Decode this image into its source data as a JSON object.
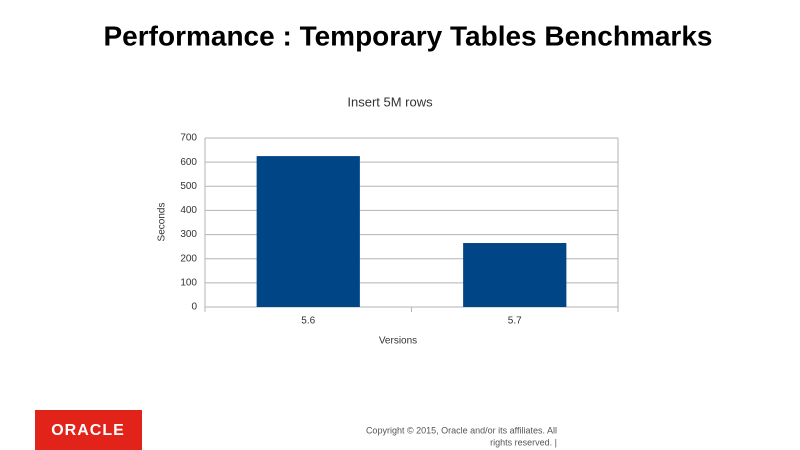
{
  "slide": {
    "title": "Performance : Temporary Tables Benchmarks"
  },
  "chart_data": {
    "type": "bar",
    "title": "Insert 5M rows",
    "x_label": "Versions",
    "y_label": "Seconds",
    "categories": [
      "5.6",
      "5.7"
    ],
    "values": [
      625,
      265
    ],
    "color": "#004586",
    "ylim": [
      0,
      700
    ],
    "yticks": [
      0,
      100,
      200,
      300,
      400,
      500,
      600,
      700
    ],
    "grid": true
  },
  "footer": {
    "logo": "ORACLE",
    "copyright": [
      "Copyright © 2015, Oracle and/or its affiliates. All",
      "rights reserved. |"
    ]
  }
}
